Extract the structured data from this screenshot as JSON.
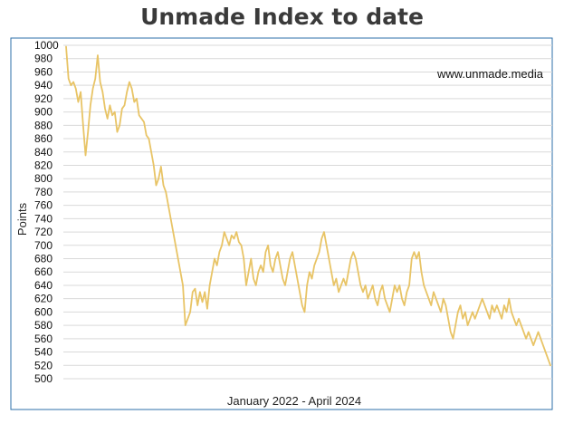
{
  "chart_data": {
    "type": "line",
    "title": "Unmade Index to date",
    "watermark": "www.unmade.media",
    "xlabel": "January 2022 - April 2024",
    "ylabel": "Points",
    "ylim": [
      500,
      1000
    ],
    "ytick_step": 20,
    "yticks": [
      "1000",
      "980",
      "960",
      "940",
      "920",
      "900",
      "880",
      "860",
      "840",
      "820",
      "800",
      "780",
      "760",
      "740",
      "720",
      "700",
      "680",
      "660",
      "640",
      "620",
      "600",
      "580",
      "560",
      "540",
      "520",
      "500"
    ],
    "grid": true,
    "legend": "none",
    "line_color": "#E8C466",
    "series": [
      {
        "values": [
          998,
          950,
          940,
          945,
          935,
          915,
          930,
          880,
          835,
          870,
          910,
          935,
          950,
          985,
          945,
          930,
          905,
          890,
          910,
          895,
          900,
          870,
          880,
          905,
          910,
          930,
          945,
          935,
          915,
          920,
          895,
          890,
          885,
          865,
          860,
          840,
          820,
          790,
          800,
          818,
          790,
          780,
          760,
          740,
          720,
          700,
          680,
          660,
          640,
          580,
          590,
          600,
          630,
          635,
          610,
          630,
          615,
          630,
          605,
          640,
          660,
          680,
          670,
          690,
          700,
          720,
          710,
          700,
          715,
          710,
          720,
          705,
          700,
          680,
          640,
          660,
          680,
          650,
          640,
          660,
          670,
          660,
          690,
          700,
          670,
          660,
          680,
          690,
          670,
          650,
          640,
          660,
          680,
          690,
          670,
          650,
          630,
          610,
          600,
          640,
          660,
          650,
          670,
          680,
          690,
          710,
          720,
          700,
          680,
          660,
          640,
          650,
          630,
          640,
          650,
          640,
          660,
          680,
          690,
          680,
          660,
          640,
          630,
          640,
          620,
          630,
          640,
          620,
          610,
          630,
          640,
          620,
          610,
          600,
          620,
          640,
          630,
          640,
          620,
          610,
          630,
          640,
          680,
          690,
          680,
          690,
          660,
          640,
          630,
          620,
          610,
          630,
          620,
          610,
          600,
          620,
          610,
          590,
          570,
          560,
          580,
          600,
          610,
          590,
          600,
          580,
          590,
          600,
          590,
          600,
          610,
          620,
          610,
          600,
          590,
          610,
          600,
          610,
          600,
          590,
          610,
          600,
          620,
          600,
          590,
          580,
          590,
          580,
          570,
          560,
          570,
          560,
          550,
          560,
          570,
          560,
          550,
          540,
          530,
          520
        ]
      }
    ]
  }
}
